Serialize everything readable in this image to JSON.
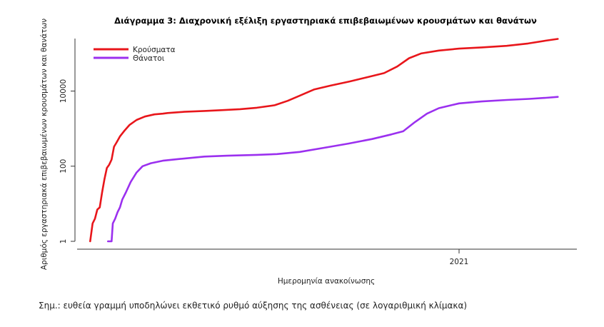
{
  "chart_data": {
    "type": "line",
    "title": "Διάγραμμα 3: Διαχρονική εξέλιξη εργαστηριακά επιβεβαιωμένων κρουσμάτων και θανάτων",
    "xlabel": "Ημερομηνία ανακοίνωσης",
    "ylabel": "Αριθμός εργαστηριακά επιβεβαιωμένων κρουσμάτων και θανάτων",
    "y_scale": "log",
    "ylim": [
      1,
      250000
    ],
    "y_ticks": [
      1,
      100,
      10000
    ],
    "y_tick_labels": [
      "1",
      "100",
      "10000"
    ],
    "xlim": [
      "2020-02-15",
      "2021-04-10"
    ],
    "x_ticks": [
      "2021-01-01"
    ],
    "x_tick_labels": [
      "2021"
    ],
    "legend_position": "top-left",
    "grid": false,
    "series": [
      {
        "name": "Κρούσματα",
        "color": "#e8161b",
        "points": [
          [
            "2020-02-26",
            1
          ],
          [
            "2020-02-28",
            3
          ],
          [
            "2020-03-01",
            4
          ],
          [
            "2020-03-03",
            7
          ],
          [
            "2020-03-05",
            8
          ],
          [
            "2020-03-07",
            20
          ],
          [
            "2020-03-09",
            45
          ],
          [
            "2020-03-11",
            90
          ],
          [
            "2020-03-13",
            110
          ],
          [
            "2020-03-15",
            150
          ],
          [
            "2020-03-17",
            330
          ],
          [
            "2020-03-19",
            420
          ],
          [
            "2020-03-22",
            620
          ],
          [
            "2020-03-26",
            900
          ],
          [
            "2020-03-30",
            1250
          ],
          [
            "2020-04-05",
            1700
          ],
          [
            "2020-04-12",
            2100
          ],
          [
            "2020-04-20",
            2400
          ],
          [
            "2020-04-27",
            2500
          ],
          [
            "2020-05-01",
            2600
          ],
          [
            "2020-05-15",
            2800
          ],
          [
            "2020-06-01",
            2950
          ],
          [
            "2020-06-15",
            3100
          ],
          [
            "2020-07-01",
            3300
          ],
          [
            "2020-07-15",
            3600
          ],
          [
            "2020-07-30",
            4200
          ],
          [
            "2020-08-10",
            5500
          ],
          [
            "2020-08-20",
            7500
          ],
          [
            "2020-09-01",
            11000
          ],
          [
            "2020-09-15",
            14000
          ],
          [
            "2020-10-01",
            18000
          ],
          [
            "2020-10-15",
            23000
          ],
          [
            "2020-10-30",
            30000
          ],
          [
            "2020-11-10",
            45000
          ],
          [
            "2020-11-20",
            75000
          ],
          [
            "2020-11-30",
            100000
          ],
          [
            "2020-12-15",
            120000
          ],
          [
            "2021-01-01",
            135000
          ],
          [
            "2021-01-20",
            145000
          ],
          [
            "2021-02-10",
            160000
          ],
          [
            "2021-02-28",
            185000
          ],
          [
            "2021-03-15",
            220000
          ],
          [
            "2021-03-25",
            245000
          ]
        ]
      },
      {
        "name": "Θάνατοι",
        "color": "#9b30ef",
        "points": [
          [
            "2020-03-12",
            1
          ],
          [
            "2020-03-15",
            1
          ],
          [
            "2020-03-16",
            3
          ],
          [
            "2020-03-18",
            4
          ],
          [
            "2020-03-20",
            6
          ],
          [
            "2020-03-22",
            8
          ],
          [
            "2020-03-24",
            13
          ],
          [
            "2020-03-27",
            20
          ],
          [
            "2020-03-31",
            38
          ],
          [
            "2020-04-05",
            68
          ],
          [
            "2020-04-10",
            100
          ],
          [
            "2020-04-17",
            120
          ],
          [
            "2020-04-27",
            140
          ],
          [
            "2020-05-10",
            155
          ],
          [
            "2020-06-01",
            180
          ],
          [
            "2020-06-20",
            190
          ],
          [
            "2020-07-15",
            200
          ],
          [
            "2020-08-01",
            210
          ],
          [
            "2020-08-20",
            240
          ],
          [
            "2020-09-10",
            310
          ],
          [
            "2020-09-30",
            400
          ],
          [
            "2020-10-20",
            530
          ],
          [
            "2020-11-05",
            700
          ],
          [
            "2020-11-15",
            850
          ],
          [
            "2020-11-25",
            1500
          ],
          [
            "2020-12-05",
            2500
          ],
          [
            "2020-12-15",
            3500
          ],
          [
            "2021-01-01",
            4700
          ],
          [
            "2021-01-20",
            5300
          ],
          [
            "2021-02-10",
            5800
          ],
          [
            "2021-03-01",
            6200
          ],
          [
            "2021-03-15",
            6600
          ],
          [
            "2021-03-25",
            7000
          ]
        ]
      }
    ]
  },
  "footnote": "Σημ.: ευθεία γραμμή υποδηλώνει εκθετικό ρυθμό αύξησης της ασθένειας (σε λογαριθμική κλίμακα)"
}
